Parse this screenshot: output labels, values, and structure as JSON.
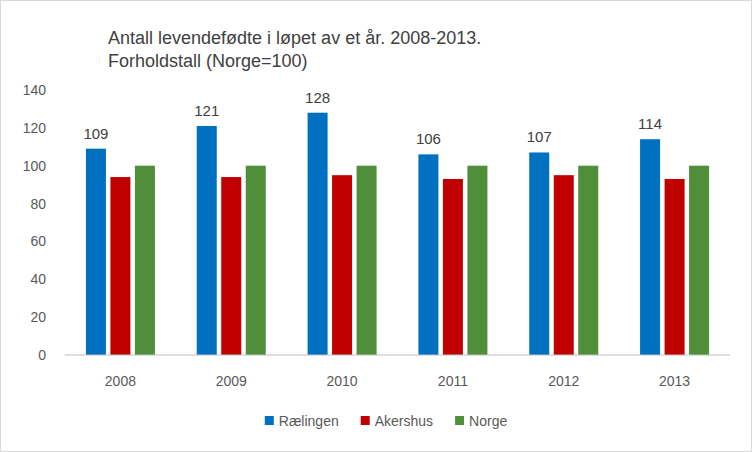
{
  "chart_data": {
    "type": "bar",
    "title": "Antall levendefødte i løpet av et år. 2008-2013.",
    "subtitle": "Forholdstall (Norge=100)",
    "categories": [
      "2008",
      "2009",
      "2010",
      "2011",
      "2012",
      "2013"
    ],
    "series": [
      {
        "name": "Rælingen",
        "color": "#0070c0",
        "values": [
          109,
          121,
          128,
          106,
          107,
          114
        ],
        "data_labels": true
      },
      {
        "name": "Akershus",
        "color": "#c00000",
        "values": [
          94,
          94,
          95,
          93,
          95,
          93
        ],
        "data_labels": false
      },
      {
        "name": "Norge",
        "color": "#4f8f3a",
        "values": [
          100,
          100,
          100,
          100,
          100,
          100
        ],
        "data_labels": false
      }
    ],
    "ylim": [
      0,
      140
    ],
    "yticks": [
      0,
      20,
      40,
      60,
      80,
      100,
      120,
      140
    ],
    "grid": false,
    "legend": "bottom"
  }
}
